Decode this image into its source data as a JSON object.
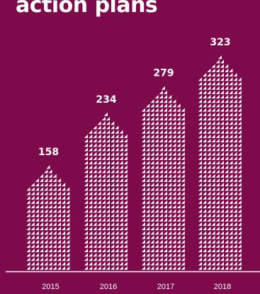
{
  "header": {
    "title": "action plans"
  },
  "colors": {
    "background": "#7d0a4a",
    "marks": "#ffffff"
  },
  "chart_data": {
    "type": "bar",
    "categories": [
      "2015",
      "2016",
      "2017",
      "2018"
    ],
    "values": [
      158,
      234,
      279,
      323
    ],
    "title": "action plans",
    "xlabel": "",
    "ylabel": "",
    "ylim": [
      0,
      340
    ],
    "grid": false,
    "mark_style": "stacked white triangle glyphs with a pointed top"
  }
}
